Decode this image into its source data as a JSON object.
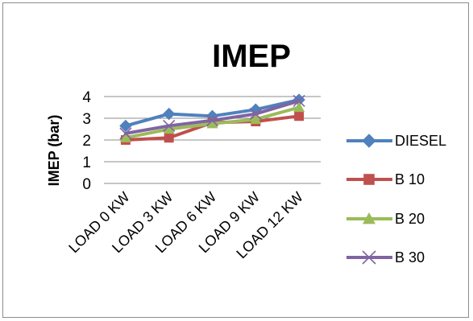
{
  "chart_data": {
    "type": "line",
    "title": "IMEP",
    "xlabel": "",
    "ylabel": "IMEP (bar)",
    "categories": [
      "LOAD 0 KW",
      "LOAD 3 KW",
      "LOAD 6 KW",
      "LOAD 9 KW",
      "LOAD 12 KW"
    ],
    "ylim": [
      0,
      4
    ],
    "yticks": [
      "0",
      "1",
      "2",
      "3",
      "4"
    ],
    "grid": true,
    "legend_position": "right",
    "series": [
      {
        "name": "DIESEL",
        "values": [
          2.65,
          3.2,
          3.1,
          3.4,
          3.85
        ],
        "color": "#4f81bd",
        "marker": "diamond"
      },
      {
        "name": "B 10",
        "values": [
          2.0,
          2.1,
          2.8,
          2.85,
          3.1
        ],
        "color": "#c0504d",
        "marker": "square"
      },
      {
        "name": "B 20",
        "values": [
          2.1,
          2.5,
          2.75,
          2.95,
          3.5
        ],
        "color": "#9bbb59",
        "marker": "triangle"
      },
      {
        "name": "B 30",
        "values": [
          2.3,
          2.65,
          2.9,
          3.2,
          3.8
        ],
        "color": "#8064a2",
        "marker": "x"
      }
    ]
  }
}
